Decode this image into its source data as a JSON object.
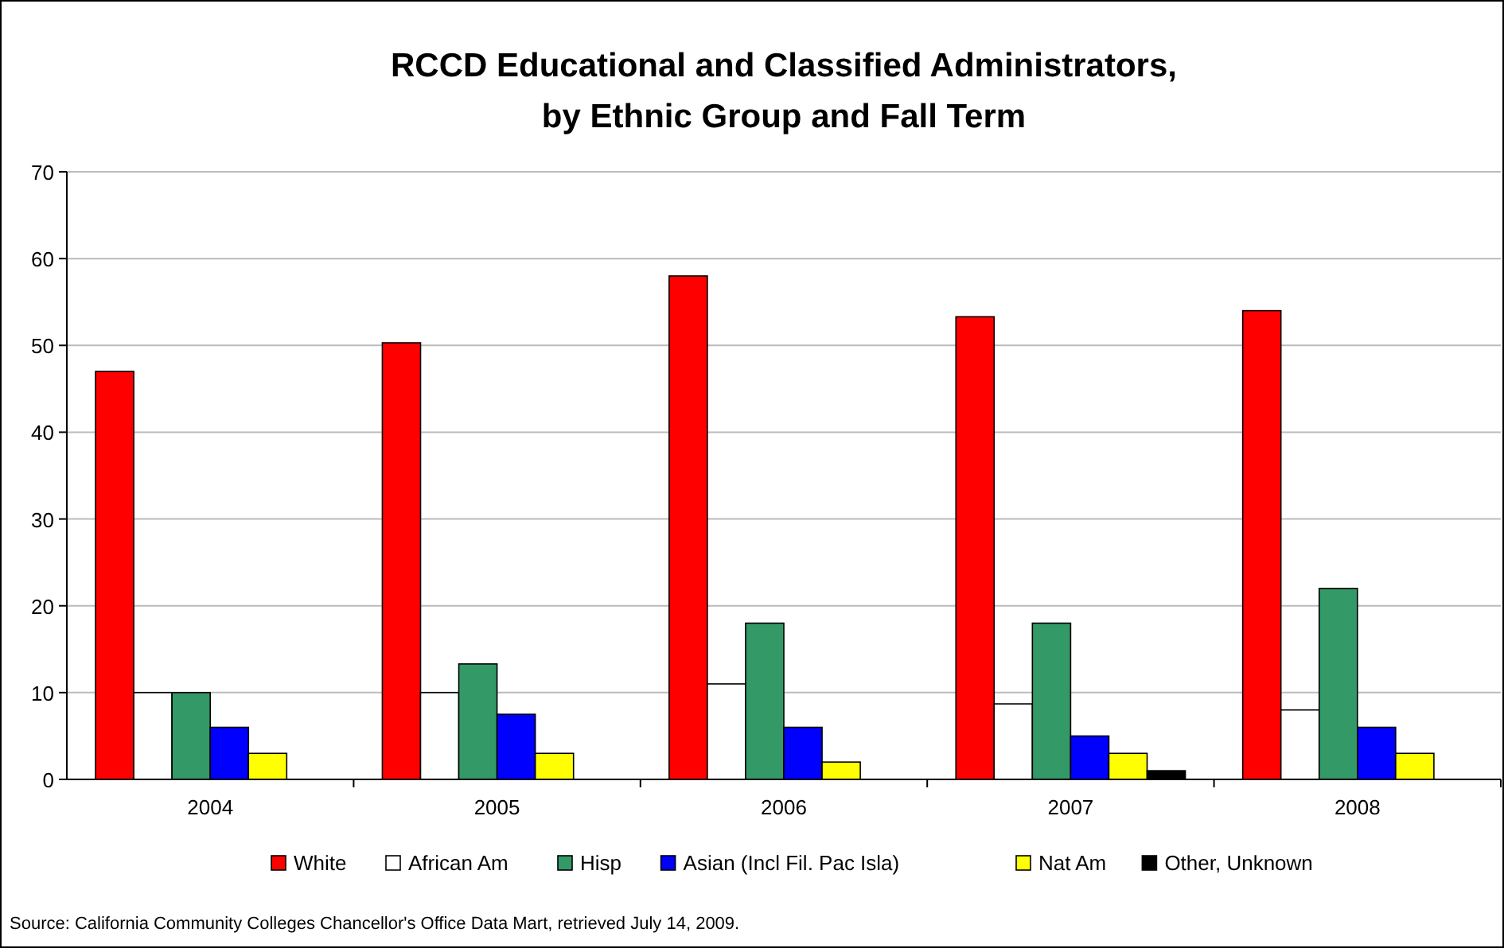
{
  "chart_data": {
    "type": "bar",
    "title": "RCCD Educational and Classified Administrators,\nby Ethnic Group and Fall Term",
    "categories": [
      "2004",
      "2005",
      "2006",
      "2007",
      "2008"
    ],
    "series": [
      {
        "name": "White",
        "color": "#ff0000",
        "values": [
          47,
          50.3,
          58,
          53.3,
          54
        ]
      },
      {
        "name": "African Am",
        "color": "#ffffff",
        "values": [
          10,
          10,
          11,
          8.7,
          8
        ]
      },
      {
        "name": "Hisp",
        "color": "#339966",
        "values": [
          10,
          13.3,
          18,
          18,
          22
        ]
      },
      {
        "name": "Asian (Incl Fil. Pac Isla)",
        "color": "#0000ff",
        "values": [
          6,
          7.5,
          6,
          5,
          6
        ]
      },
      {
        "name": "Nat Am",
        "color": "#ffff00",
        "values": [
          3,
          3,
          2,
          3,
          3
        ]
      },
      {
        "name": "Other, Unknown",
        "color": "#000000",
        "values": [
          0,
          0,
          0,
          1,
          0
        ]
      }
    ],
    "ylim": [
      0,
      70
    ],
    "yticks": [
      0,
      10,
      20,
      30,
      40,
      50,
      60,
      70
    ],
    "grid": "y",
    "legend": "bottom",
    "annotations": [
      "Source: California Community Colleges Chancellor's Office Data Mart, retrieved July 14, 2009."
    ]
  }
}
